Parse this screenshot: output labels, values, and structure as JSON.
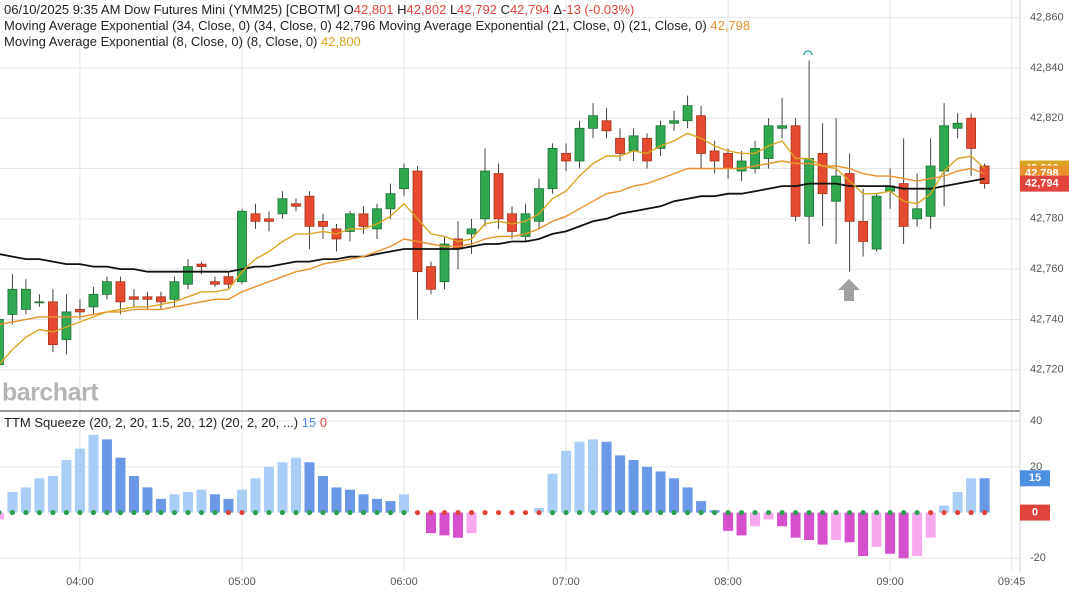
{
  "chart_data": [
    {
      "type": "candlestick",
      "header": {
        "date": "06/10/2025",
        "time": "9:35 AM",
        "symbol": "Dow Futures Mini (YMM25) [CBOTM]",
        "open_label": "O",
        "open": "42,801",
        "high_label": "H",
        "high": "42,802",
        "low_label": "L",
        "low": "42,792",
        "close_label": "C",
        "close": "42,794",
        "change_label": "Δ",
        "change": "-13 (-0.03%)"
      },
      "watermark": "barchart",
      "x": [
        210,
        215,
        220,
        225,
        230,
        235,
        240,
        245,
        250,
        255,
        260,
        265,
        270,
        275,
        280,
        285,
        290,
        295,
        300,
        305,
        310,
        315,
        320,
        325,
        330,
        335,
        340,
        345,
        350,
        355,
        360,
        365,
        370,
        375,
        380,
        385,
        390,
        395,
        400,
        405,
        410,
        415,
        420,
        425,
        430,
        435,
        440,
        445,
        450,
        455,
        460,
        465,
        470,
        475,
        480,
        485,
        490,
        495,
        500,
        505,
        510,
        515,
        520,
        525,
        530,
        535,
        540,
        545,
        550,
        555,
        560,
        565,
        570,
        575
      ],
      "open": [
        42722,
        42742,
        42744,
        42747,
        42747,
        42732,
        42744,
        42745,
        42750,
        42755,
        42749,
        42749,
        42749,
        42748,
        42754,
        42762,
        42755,
        42757,
        42755,
        42782,
        42780,
        42782,
        42786,
        42789,
        42779,
        42776,
        42775,
        42782,
        42776,
        42784,
        42792,
        42799,
        42761,
        42755,
        42772,
        42774,
        42780,
        42798,
        42782,
        42773,
        42779,
        42792,
        42806,
        42803,
        42816,
        42819,
        42812,
        42807,
        42812,
        42808,
        42818,
        42819,
        42821,
        42807,
        42806,
        42799,
        42800,
        42804,
        42816,
        42817,
        42781,
        42806,
        42787,
        42798,
        42779,
        42768,
        42791,
        42794,
        42780,
        42781,
        42799,
        42816,
        42820,
        42801
      ],
      "high": [
        42745,
        42758,
        42756,
        42750,
        42752,
        42750,
        42748,
        42753,
        42757,
        42757,
        42752,
        42751,
        42751,
        42757,
        42764,
        42763,
        42757,
        42759,
        42784,
        42786,
        42783,
        42791,
        42788,
        42791,
        42782,
        42778,
        42783,
        42785,
        42786,
        42794,
        42802,
        42801,
        42763,
        42773,
        42779,
        42780,
        42808,
        42802,
        42785,
        42786,
        42796,
        42810,
        42810,
        42819,
        42826,
        42824,
        42816,
        42816,
        42814,
        42819,
        42823,
        42829,
        42825,
        42811,
        42808,
        42807,
        42811,
        42820,
        42828,
        42820,
        42843,
        42818,
        42820,
        42806,
        42792,
        42790,
        42800,
        42812,
        42798,
        42812,
        42826,
        42822,
        42822,
        42802
      ],
      "low": [
        42718,
        42738,
        42742,
        42745,
        42727,
        42726,
        42740,
        42742,
        42748,
        42742,
        42745,
        42744,
        42744,
        42745,
        42752,
        42758,
        42753,
        42752,
        42754,
        42776,
        42775,
        42780,
        42783,
        42768,
        42772,
        42767,
        42771,
        42774,
        42772,
        42780,
        42789,
        42740,
        42750,
        42752,
        42760,
        42766,
        42777,
        42776,
        42772,
        42771,
        42776,
        42790,
        42799,
        42800,
        42812,
        42812,
        42803,
        42803,
        42800,
        42805,
        42815,
        42816,
        42800,
        42798,
        42796,
        42795,
        42798,
        42800,
        42812,
        42779,
        42770,
        42777,
        42770,
        42759,
        42765,
        42767,
        42784,
        42770,
        42777,
        42776,
        42785,
        42812,
        42797,
        42792
      ],
      "close": [
        42740,
        42752,
        42752,
        42747,
        42730,
        42743,
        42743,
        42750,
        42755,
        42747,
        42748,
        42748,
        42747,
        42755,
        42761,
        42761,
        42754,
        42754,
        42783,
        42779,
        42779,
        42788,
        42785,
        42777,
        42777,
        42772,
        42782,
        42777,
        42784,
        42790,
        42800,
        42759,
        42752,
        42770,
        42768,
        42776,
        42799,
        42780,
        42775,
        42782,
        42792,
        42808,
        42803,
        42816,
        42821,
        42815,
        42806,
        42813,
        42803,
        42817,
        42819,
        42825,
        42806,
        42803,
        42800,
        42803,
        42808,
        42817,
        42817,
        42781,
        42804,
        42790,
        42797,
        42779,
        42771,
        42789,
        42793,
        42777,
        42784,
        42801,
        42817,
        42818,
        42808,
        42794
      ],
      "up_color": "#2fa84f",
      "down_color": "#e54b30",
      "series": [
        {
          "name": "Moving Average Exponential (34, Close, 0)",
          "params": "(34, Close, 0)",
          "last_label": "42,796",
          "color": "#111111",
          "values": [
            42766,
            42765,
            42764,
            42764,
            42763,
            42762,
            42762,
            42761,
            42761,
            42760,
            42760,
            42759,
            42759,
            42759,
            42759,
            42759,
            42759,
            42759,
            42760,
            42761,
            42761,
            42762,
            42763,
            42763,
            42764,
            42764,
            42765,
            42765,
            42766,
            42767,
            42768,
            42768,
            42768,
            42768,
            42768,
            42769,
            42770,
            42770,
            42771,
            42771,
            42772,
            42774,
            42775,
            42777,
            42779,
            42780,
            42782,
            42783,
            42784,
            42785,
            42787,
            42788,
            42789,
            42789,
            42790,
            42790,
            42791,
            42792,
            42793,
            42793,
            42794,
            42794,
            42794,
            42793,
            42793,
            42793,
            42793,
            42792,
            42792,
            42792,
            42793,
            42794,
            42795,
            42796
          ]
        },
        {
          "name": "Moving Average Exponential (21, Close, 0)",
          "params": "(21, Close, 0)",
          "last_label": "42,798",
          "color": "#e8912d",
          "values": [
            42738,
            42739,
            42740,
            42741,
            42741,
            42741,
            42741,
            42742,
            42743,
            42743,
            42744,
            42744,
            42744,
            42745,
            42746,
            42747,
            42748,
            42748,
            42751,
            42753,
            42755,
            42757,
            42759,
            42760,
            42762,
            42763,
            42764,
            42765,
            42767,
            42769,
            42772,
            42771,
            42770,
            42769,
            42769,
            42770,
            42772,
            42773,
            42773,
            42774,
            42776,
            42779,
            42781,
            42784,
            42787,
            42790,
            42791,
            42793,
            42794,
            42796,
            42798,
            42800,
            42800,
            42800,
            42800,
            42800,
            42801,
            42802,
            42803,
            42802,
            42802,
            42801,
            42801,
            42800,
            42798,
            42797,
            42797,
            42796,
            42795,
            42796,
            42797,
            42799,
            42800,
            42798
          ]
        },
        {
          "name": "Moving Average Exponential (8, Close, 0)",
          "params": "(8, Close, 0)",
          "last_label": "42,800",
          "color": "#d9a520",
          "values": [
            42722,
            42728,
            42733,
            42736,
            42735,
            42737,
            42739,
            42741,
            42743,
            42744,
            42745,
            42745,
            42746,
            42747,
            42749,
            42751,
            42751,
            42752,
            42759,
            42764,
            42767,
            42771,
            42774,
            42774,
            42775,
            42774,
            42776,
            42776,
            42778,
            42781,
            42786,
            42780,
            42774,
            42773,
            42771,
            42772,
            42778,
            42779,
            42778,
            42779,
            42782,
            42788,
            42791,
            42797,
            42802,
            42805,
            42805,
            42807,
            42806,
            42809,
            42811,
            42814,
            42812,
            42809,
            42807,
            42806,
            42806,
            42809,
            42811,
            42804,
            42804,
            42801,
            42800,
            42795,
            42790,
            42790,
            42791,
            42787,
            42786,
            42790,
            42799,
            42804,
            42805,
            42800
          ]
        }
      ],
      "xlim": [
        210.4,
        588.1
      ],
      "xticks": [
        {
          "value": 240,
          "label": "04:00"
        },
        {
          "value": 300,
          "label": "05:00"
        },
        {
          "value": 360,
          "label": "06:00"
        },
        {
          "value": 420,
          "label": "07:00"
        },
        {
          "value": 480,
          "label": "08:00"
        },
        {
          "value": 540,
          "label": "09:00"
        },
        {
          "value": 585,
          "label": "09:45"
        }
      ],
      "ylim": [
        42704,
        42867
      ],
      "yticks": [
        {
          "value": 42720,
          "label": "42,720"
        },
        {
          "value": 42740,
          "label": "42,740"
        },
        {
          "value": 42760,
          "label": "42,760"
        },
        {
          "value": 42780,
          "label": "42,780"
        },
        {
          "value": 42800,
          "label": "42,800"
        },
        {
          "value": 42820,
          "label": "42,820"
        },
        {
          "value": 42840,
          "label": "42,840"
        },
        {
          "value": 42860,
          "label": "42,860"
        }
      ],
      "grid": true
    },
    {
      "type": "bar",
      "title": "TTM Squeeze (20, 2, 20, 1.5, 20, 12)",
      "params": "(20, 2, 20, ...)",
      "value_label": "15",
      "dot_label": "0",
      "values": [
        -3,
        9,
        11,
        15,
        16,
        23,
        28,
        34,
        32,
        24,
        16,
        11,
        6,
        8,
        9,
        10,
        8,
        6,
        10,
        15,
        20,
        22,
        24,
        22,
        16,
        11,
        10,
        8,
        6,
        5,
        8,
        0,
        -9,
        -10,
        -11,
        -9,
        0,
        0,
        0,
        0,
        2,
        17,
        27,
        31,
        32,
        31,
        25,
        23,
        20,
        18,
        15,
        11,
        5,
        1,
        -8,
        -10,
        -6,
        -3,
        -6,
        -11,
        -12,
        -14,
        -12,
        -13,
        -19,
        -15,
        -18,
        -20,
        -19,
        -11,
        3,
        9,
        15,
        15
      ],
      "colors": {
        "positive_rising": "#a9cdf7",
        "positive_falling": "#6a97e6",
        "negative_falling": "#d64fcc",
        "negative_rising": "#f6a9ec"
      },
      "dot_colors": [
        "#2e9e4f",
        "#2e9e4f",
        "#2e9e4f",
        "#2e9e4f",
        "#2e9e4f",
        "#2e9e4f",
        "#2e9e4f",
        "#2e9e4f",
        "#2e9e4f",
        "#2e9e4f",
        "#2e9e4f",
        "#2e9e4f",
        "#2e9e4f",
        "#2e9e4f",
        "#2e9e4f",
        "#2e9e4f",
        "#2e9e4f",
        "#e0443a",
        "#e0443a",
        "#2e9e4f",
        "#2e9e4f",
        "#2e9e4f",
        "#2e9e4f",
        "#2e9e4f",
        "#2e9e4f",
        "#2e9e4f",
        "#2e9e4f",
        "#2e9e4f",
        "#2e9e4f",
        "#2e9e4f",
        "#2e9e4f",
        "#e0443a",
        "#e0443a",
        "#e0443a",
        "#e0443a",
        "#e0443a",
        "#e0443a",
        "#e0443a",
        "#e0443a",
        "#e0443a",
        "#e0443a",
        "#2e9e4f",
        "#2e9e4f",
        "#2e9e4f",
        "#2e9e4f",
        "#2e9e4f",
        "#2e9e4f",
        "#2e9e4f",
        "#2e9e4f",
        "#2e9e4f",
        "#2e9e4f",
        "#2e9e4f",
        "#2e9e4f",
        "#2e9e4f",
        "#2e9e4f",
        "#2e9e4f",
        "#2e9e4f",
        "#2e9e4f",
        "#2e9e4f",
        "#2e9e4f",
        "#2e9e4f",
        "#2e9e4f",
        "#2e9e4f",
        "#2e9e4f",
        "#2e9e4f",
        "#2e9e4f",
        "#2e9e4f",
        "#2e9e4f",
        "#2e9e4f",
        "#e0443a",
        "#e0443a",
        "#e0443a",
        "#e0443a",
        "#e0443a"
      ],
      "ylim": [
        -26,
        44
      ],
      "yticks": [
        40,
        20,
        -20
      ],
      "grid": true
    }
  ]
}
